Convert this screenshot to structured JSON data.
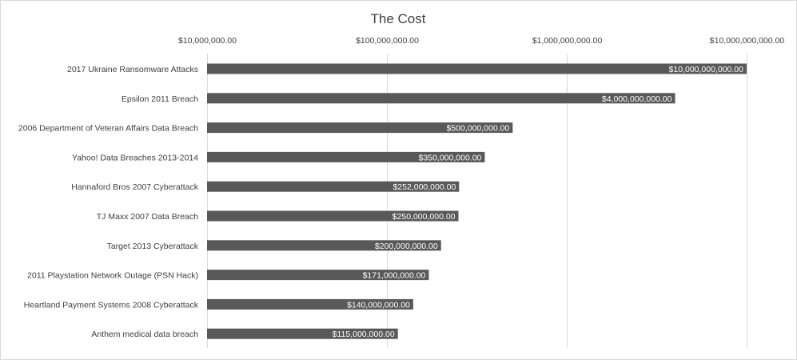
{
  "chart_data": {
    "type": "bar",
    "orientation": "horizontal",
    "title": "The Cost",
    "xlabel": "",
    "ylabel": "",
    "x_scale": "log",
    "xlim": [
      10000000,
      10000000000
    ],
    "x_axis_position": "top",
    "grid": true,
    "legend": "none",
    "bar_color": "#595959",
    "x_ticks": [
      {
        "value": 10000000,
        "label": "$10,000,000.00"
      },
      {
        "value": 100000000,
        "label": "$100,000,000.00"
      },
      {
        "value": 1000000000,
        "label": "$1,000,000,000.00"
      },
      {
        "value": 10000000000,
        "label": "$10,000,000,000.00"
      }
    ],
    "categories": [
      "2017 Ukraine Ransomware Attacks",
      "Epsilon 2011 Breach ",
      "2006 Department of Veteran Affairs Data Breach",
      "Yahoo! Data Breaches 2013-2014",
      "Hannaford Bros 2007 Cyberattack",
      "TJ Maxx 2007 Data Breach",
      "Target 2013 Cyberattack",
      "2011 Playstation Network Outage (PSN Hack)",
      "Heartland Payment Systems 2008 Cyberattack",
      "Anthem medical data breach"
    ],
    "values": [
      10000000000,
      4000000000,
      500000000,
      350000000,
      252000000,
      250000000,
      200000000,
      171000000,
      140000000,
      115000000
    ],
    "value_labels": [
      "$10,000,000,000.00",
      "$4,000,000,000.00",
      "$500,000,000.00",
      "$350,000,000.00",
      "$252,000,000.00",
      "$250,000,000.00",
      "$200,000,000.00",
      "$171,000,000.00",
      "$140,000,000.00",
      "$115,000,000.00"
    ]
  }
}
